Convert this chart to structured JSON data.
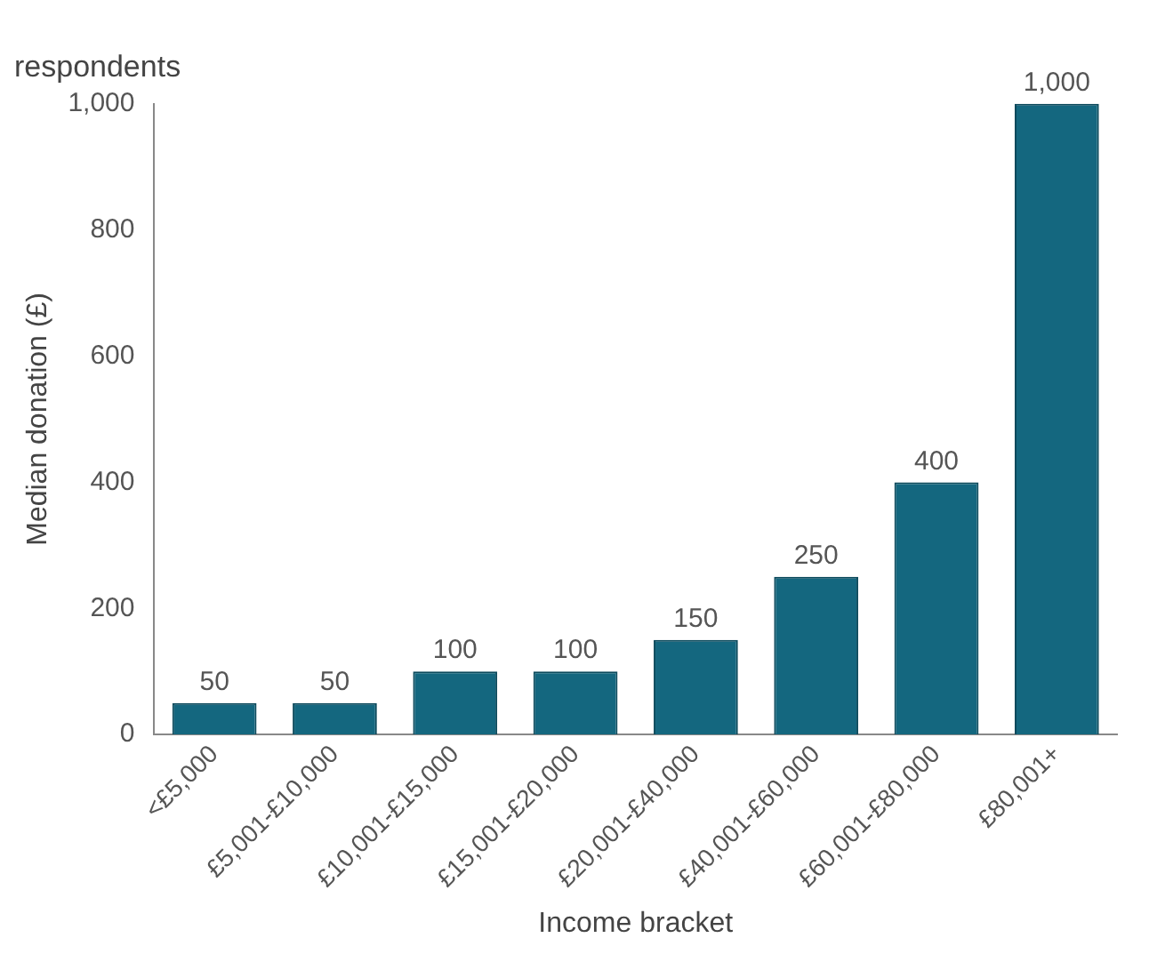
{
  "chart_data": {
    "type": "bar",
    "title": "respondents",
    "xlabel": "Income bracket",
    "ylabel": "Median donation (£)",
    "categories": [
      "<£5,000",
      "£5,001-£10,000",
      "£10,001-£15,000",
      "£15,001-£20,000",
      "£20,001-£40,000",
      "£40,001-£60,000",
      "£60,001-£80,000",
      "£80,001+"
    ],
    "values": [
      50,
      50,
      100,
      100,
      150,
      250,
      400,
      1000
    ],
    "color": "#14677f",
    "ylim": [
      0,
      1000
    ],
    "yticks": [
      {
        "value": 0,
        "label": "0"
      },
      {
        "value": 200,
        "label": "200"
      },
      {
        "value": 400,
        "label": "400"
      },
      {
        "value": 600,
        "label": "600"
      },
      {
        "value": 800,
        "label": "800"
      },
      {
        "value": 1000,
        "label": "1,000"
      }
    ],
    "value_labels": [
      "50",
      "50",
      "100",
      "100",
      "150",
      "250",
      "400",
      "1,000"
    ],
    "grid": false,
    "legend": false
  }
}
